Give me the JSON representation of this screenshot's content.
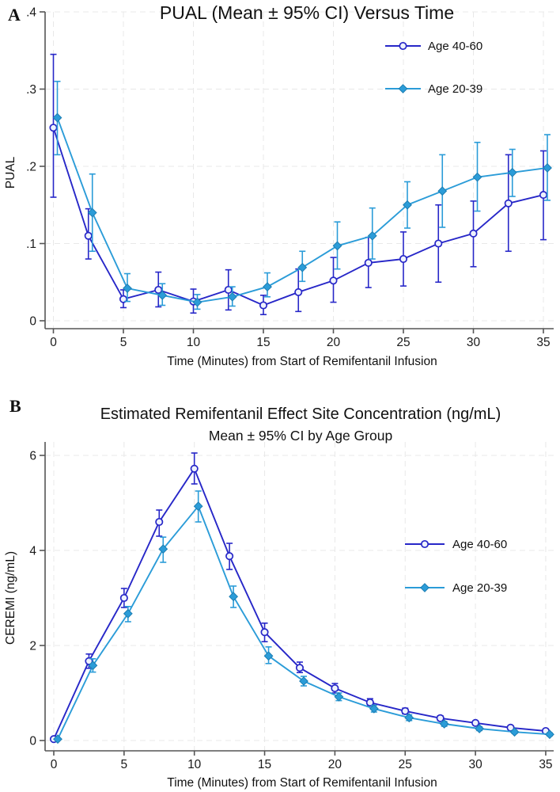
{
  "figure": {
    "background": "#ffffff",
    "panel_letters": [
      "A",
      "B"
    ]
  },
  "colors": {
    "age_40_60": "#2727C8",
    "age_20_39": "#2B9CD8",
    "diamond_edge": "#1B7DB2",
    "gridline": "#e8e8e8",
    "axis": "#555555"
  },
  "chart_data": [
    {
      "type": "line",
      "panel_label": "A",
      "title": "PUAL (Mean ± 95% CI) Versus Time",
      "xlabel": "Time (Minutes) from Start of Remifentanil Infusion",
      "ylabel": "PUAL",
      "x": [
        0,
        2.5,
        5,
        7.5,
        10,
        12.5,
        15,
        17.5,
        20,
        22.5,
        25,
        27.5,
        30,
        32.5,
        35
      ],
      "x_ticks": [
        0,
        5,
        10,
        15,
        20,
        25,
        30,
        35
      ],
      "y_tick_values": [
        0,
        0.1,
        0.2,
        0.3,
        0.4
      ],
      "y_tick_labels": [
        "0",
        ".1",
        ".2",
        ".3",
        ".4"
      ],
      "ylim": [
        0,
        0.41
      ],
      "grid": "dashed-both-axes",
      "legend_position": "inside-upper-right",
      "series": [
        {
          "name": "Age 40-60",
          "color": "#2727C8",
          "marker": "circle-open",
          "mean": [
            0.25,
            0.11,
            0.028,
            0.04,
            0.025,
            0.04,
            0.02,
            0.037,
            0.052,
            0.075,
            0.08,
            0.1,
            0.113,
            0.152,
            0.163
          ],
          "ci_low": [
            0.16,
            0.08,
            0.017,
            0.018,
            0.01,
            0.014,
            0.008,
            0.012,
            0.024,
            0.043,
            0.045,
            0.05,
            0.07,
            0.09,
            0.105
          ],
          "ci_high": [
            0.345,
            0.145,
            0.04,
            0.063,
            0.041,
            0.066,
            0.033,
            0.067,
            0.082,
            0.108,
            0.115,
            0.15,
            0.155,
            0.215,
            0.22
          ]
        },
        {
          "name": "Age 20-39",
          "color": "#2B9CD8",
          "marker": "diamond-filled",
          "mean": [
            0.263,
            0.14,
            0.042,
            0.033,
            0.024,
            0.031,
            0.044,
            0.069,
            0.097,
            0.11,
            0.15,
            0.168,
            0.186,
            0.192,
            0.198
          ],
          "ci_low": [
            0.215,
            0.09,
            0.025,
            0.02,
            0.015,
            0.019,
            0.031,
            0.051,
            0.067,
            0.08,
            0.12,
            0.121,
            0.142,
            0.161,
            0.156
          ],
          "ci_high": [
            0.31,
            0.19,
            0.061,
            0.048,
            0.034,
            0.044,
            0.062,
            0.09,
            0.128,
            0.146,
            0.18,
            0.215,
            0.231,
            0.222,
            0.241
          ]
        }
      ]
    },
    {
      "type": "line",
      "panel_label": "B",
      "title": "Estimated Remifentanil Effect Site Concentration (ng/mL)",
      "subtitle": "Mean ± 95% CI by Age Group",
      "xlabel": "Time (Minutes) from Start of Remifentanil Infusion",
      "ylabel": "CEREMI (ng/mL)",
      "x": [
        0,
        2.5,
        5,
        7.5,
        10,
        12.5,
        15,
        17.5,
        20,
        22.5,
        25,
        27.5,
        30,
        32.5,
        35
      ],
      "x_ticks": [
        0,
        5,
        10,
        15,
        20,
        25,
        30,
        35
      ],
      "y_tick_values": [
        0,
        2,
        4,
        6
      ],
      "y_tick_labels": [
        "0",
        "2",
        "4",
        "6"
      ],
      "ylim": [
        0,
        6.3
      ],
      "grid": "dashed-both-axes",
      "legend_position": "inside-middle-right",
      "series": [
        {
          "name": "Age 40-60",
          "color": "#2727C8",
          "marker": "circle-open",
          "mean": [
            0.03,
            1.67,
            3.0,
            4.6,
            5.72,
            3.88,
            2.28,
            1.53,
            1.1,
            0.8,
            0.62,
            0.47,
            0.37,
            0.27,
            0.2
          ],
          "ci_low": [
            0.02,
            1.52,
            2.8,
            4.3,
            5.4,
            3.6,
            2.08,
            1.43,
            1.0,
            0.73,
            0.56,
            0.42,
            0.33,
            0.24,
            0.17
          ],
          "ci_high": [
            0.04,
            1.82,
            3.2,
            4.85,
            6.05,
            4.15,
            2.47,
            1.65,
            1.2,
            0.88,
            0.68,
            0.52,
            0.41,
            0.31,
            0.23
          ]
        },
        {
          "name": "Age 20-39",
          "color": "#2B9CD8",
          "marker": "diamond-filled",
          "mean": [
            0.03,
            1.58,
            2.67,
            4.03,
            4.93,
            3.03,
            1.78,
            1.25,
            0.92,
            0.67,
            0.48,
            0.35,
            0.25,
            0.18,
            0.13
          ],
          "ci_low": [
            0.02,
            1.44,
            2.5,
            3.75,
            4.6,
            2.8,
            1.62,
            1.15,
            0.84,
            0.6,
            0.42,
            0.3,
            0.21,
            0.15,
            0.1
          ],
          "ci_high": [
            0.04,
            1.72,
            2.82,
            4.28,
            5.25,
            3.25,
            1.97,
            1.35,
            1.0,
            0.74,
            0.54,
            0.4,
            0.29,
            0.21,
            0.16
          ]
        }
      ]
    }
  ]
}
